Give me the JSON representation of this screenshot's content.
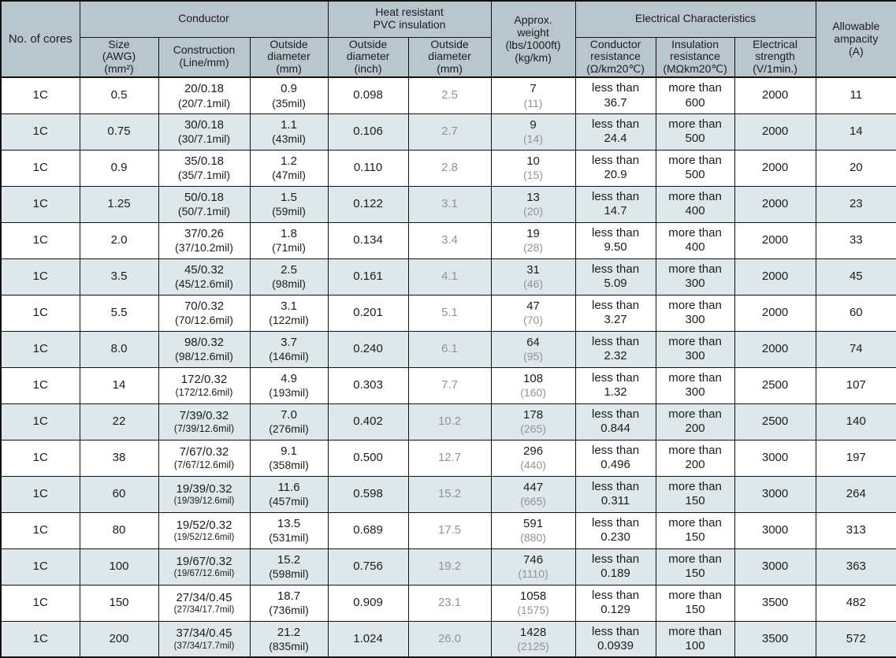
{
  "theme": {
    "header_bg": "#b9c6ce",
    "row_alt_bg": "#dee7ea",
    "border_color": "#111111",
    "text_color": "#1c1c1e",
    "muted_color": "#8f9498"
  },
  "table": {
    "header": {
      "no_of_cores": "No. of cores",
      "conductor": "Conductor",
      "heat_resistant_pvc": "Heat resistant\nPVC insulation",
      "approx_weight": "Approx.\nweight\n(lbs/1000ft)\n(kg/km)",
      "electrical_characteristics": "Electrical Characteristics",
      "allowable_ampacity": "Allowable\nampacity\n(A)",
      "size": "Size\n(AWG)\n(mm²)",
      "construction": "Construction\n(Line/mm)",
      "outside_diameter_mm": "Outside\ndiameter\n(mm)",
      "pvc_od_inch": "Outside\ndiameter\n(inch)",
      "pvc_od_mm": "Outside\ndiameter\n(mm)",
      "conductor_resistance": "Conductor\nresistance\n(Ω/km20℃)",
      "insulation_resistance": "Insulation\nresistance\n(MΩkm20℃)",
      "electrical_strength": "Electrical\nstrength\n(V/1min.)"
    },
    "rows": [
      {
        "cores": "1C",
        "size": "0.5",
        "construction": "20/0.18",
        "construction_sub": "(20/7.1mil)",
        "od": "0.9",
        "od_sub": "(35mil)",
        "insulation_od_inch": "0.098",
        "insulation_od_mm": "2.5",
        "weight": "7",
        "weight_sub": "(11)",
        "conductor_resistance": "less than\n36.7",
        "insulation_resistance": "more than\n600",
        "strength": "2000",
        "ampacity": "11"
      },
      {
        "cores": "1C",
        "size": "0.75",
        "construction": "30/0.18",
        "construction_sub": "(30/7.1mil)",
        "od": "1.1",
        "od_sub": "(43mil)",
        "insulation_od_inch": "0.106",
        "insulation_od_mm": "2.7",
        "weight": "9",
        "weight_sub": "(14)",
        "conductor_resistance": "less than\n24.4",
        "insulation_resistance": "more than\n500",
        "strength": "2000",
        "ampacity": "14"
      },
      {
        "cores": "1C",
        "size": "0.9",
        "construction": "35/0.18",
        "construction_sub": "(35/7.1mil)",
        "od": "1.2",
        "od_sub": "(47mil)",
        "insulation_od_inch": "0.110",
        "insulation_od_mm": "2.8",
        "weight": "10",
        "weight_sub": "(15)",
        "conductor_resistance": "less than\n20.9",
        "insulation_resistance": "more than\n500",
        "strength": "2000",
        "ampacity": "20"
      },
      {
        "cores": "1C",
        "size": "1.25",
        "construction": "50/0.18",
        "construction_sub": "(50/7.1mil)",
        "od": "1.5",
        "od_sub": "(59mil)",
        "insulation_od_inch": "0.122",
        "insulation_od_mm": "3.1",
        "weight": "13",
        "weight_sub": "(20)",
        "conductor_resistance": "less than\n14.7",
        "insulation_resistance": "more than\n400",
        "strength": "2000",
        "ampacity": "23"
      },
      {
        "cores": "1C",
        "size": "2.0",
        "construction": "37/0.26",
        "construction_sub": "(37/10.2mil)",
        "od": "1.8",
        "od_sub": "(71mil)",
        "insulation_od_inch": "0.134",
        "insulation_od_mm": "3.4",
        "weight": "19",
        "weight_sub": "(28)",
        "conductor_resistance": "less than\n9.50",
        "insulation_resistance": "more than\n400",
        "strength": "2000",
        "ampacity": "33"
      },
      {
        "cores": "1C",
        "size": "3.5",
        "construction": "45/0.32",
        "construction_sub": "(45/12.6mil)",
        "od": "2.5",
        "od_sub": "(98mil)",
        "insulation_od_inch": "0.161",
        "insulation_od_mm": "4.1",
        "weight": "31",
        "weight_sub": "(46)",
        "conductor_resistance": "less than\n5.09",
        "insulation_resistance": "more than\n300",
        "strength": "2000",
        "ampacity": "45"
      },
      {
        "cores": "1C",
        "size": "5.5",
        "construction": "70/0.32",
        "construction_sub": "(70/12.6mil)",
        "od": "3.1",
        "od_sub": "(122mil)",
        "insulation_od_inch": "0.201",
        "insulation_od_mm": "5.1",
        "weight": "47",
        "weight_sub": "(70)",
        "conductor_resistance": "less than\n3.27",
        "insulation_resistance": "more than\n300",
        "strength": "2000",
        "ampacity": "60"
      },
      {
        "cores": "1C",
        "size": "8.0",
        "construction": "98/0.32",
        "construction_sub": "(98/12.6mil)",
        "od": "3.7",
        "od_sub": "(146mil)",
        "insulation_od_inch": "0.240",
        "insulation_od_mm": "6.1",
        "weight": "64",
        "weight_sub": "(95)",
        "conductor_resistance": "less than\n2.32",
        "insulation_resistance": "more than\n300",
        "strength": "2000",
        "ampacity": "74"
      },
      {
        "cores": "1C",
        "size": "14",
        "construction": "172/0.32",
        "construction_sub": "(172/12.6mil)",
        "od": "4.9",
        "od_sub": "(193mil)",
        "insulation_od_inch": "0.303",
        "insulation_od_mm": "7.7",
        "weight": "108",
        "weight_sub": "(160)",
        "conductor_resistance": "less than\n1.32",
        "insulation_resistance": "more than\n300",
        "strength": "2500",
        "ampacity": "107"
      },
      {
        "cores": "1C",
        "size": "22",
        "construction": "7/39/0.32",
        "construction_sub": "(7/39/12.6mil)",
        "od": "7.0",
        "od_sub": "(276mil)",
        "insulation_od_inch": "0.402",
        "insulation_od_mm": "10.2",
        "weight": "178",
        "weight_sub": "(265)",
        "conductor_resistance": "less than\n0.844",
        "insulation_resistance": "more than\n200",
        "strength": "2500",
        "ampacity": "140"
      },
      {
        "cores": "1C",
        "size": "38",
        "construction": "7/67/0.32",
        "construction_sub": "(7/67/12.6mil)",
        "od": "9.1",
        "od_sub": "(358mil)",
        "insulation_od_inch": "0.500",
        "insulation_od_mm": "12.7",
        "weight": "296",
        "weight_sub": "(440)",
        "conductor_resistance": "less than\n0.496",
        "insulation_resistance": "more than\n200",
        "strength": "3000",
        "ampacity": "197"
      },
      {
        "cores": "1C",
        "size": "60",
        "construction": "19/39/0.32",
        "construction_sub": "(19/39/12.6mil)",
        "od": "11.6",
        "od_sub": "(457mil)",
        "insulation_od_inch": "0.598",
        "insulation_od_mm": "15.2",
        "weight": "447",
        "weight_sub": "(665)",
        "conductor_resistance": "less than\n0.311",
        "insulation_resistance": "more than\n150",
        "strength": "3000",
        "ampacity": "264"
      },
      {
        "cores": "1C",
        "size": "80",
        "construction": "19/52/0.32",
        "construction_sub": "(19/52/12.6mil)",
        "od": "13.5",
        "od_sub": "(531mil)",
        "insulation_od_inch": "0.689",
        "insulation_od_mm": "17.5",
        "weight": "591",
        "weight_sub": "(880)",
        "conductor_resistance": "less than\n0.230",
        "insulation_resistance": "more than\n150",
        "strength": "3000",
        "ampacity": "313"
      },
      {
        "cores": "1C",
        "size": "100",
        "construction": "19/67/0.32",
        "construction_sub": "(19/67/12.6mil)",
        "od": "15.2",
        "od_sub": "(598mil)",
        "insulation_od_inch": "0.756",
        "insulation_od_mm": "19.2",
        "weight": "746",
        "weight_sub": "(1110)",
        "conductor_resistance": "less than\n0.189",
        "insulation_resistance": "more than\n150",
        "strength": "3000",
        "ampacity": "363"
      },
      {
        "cores": "1C",
        "size": "150",
        "construction": "27/34/0.45",
        "construction_sub": "(27/34/17.7mil)",
        "od": "18.7",
        "od_sub": "(736mil)",
        "insulation_od_inch": "0.909",
        "insulation_od_mm": "23.1",
        "weight": "1058",
        "weight_sub": "(1575)",
        "conductor_resistance": "less than\n0.129",
        "insulation_resistance": "more than\n150",
        "strength": "3500",
        "ampacity": "482"
      },
      {
        "cores": "1C",
        "size": "200",
        "construction": "37/34/0.45",
        "construction_sub": "(37/34/17.7mil)",
        "od": "21.2",
        "od_sub": "(835mil)",
        "insulation_od_inch": "1.024",
        "insulation_od_mm": "26.0",
        "weight": "1428",
        "weight_sub": "(2125)",
        "conductor_resistance": "less than\n0.0939",
        "insulation_resistance": "more than\n100",
        "strength": "3500",
        "ampacity": "572"
      }
    ]
  }
}
